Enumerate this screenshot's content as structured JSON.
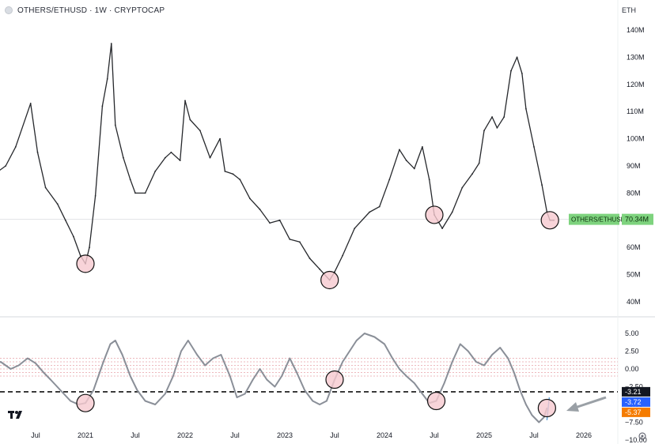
{
  "header": {
    "title": "OTHERS/ETHUSD · 1W · CRYPTOCAP",
    "currency": "ETH"
  },
  "price_tag": {
    "label": "OTHERS/ETHUSD",
    "value": "70.34M"
  },
  "osc_tags": [
    {
      "value": "-3.21",
      "color": "#131722"
    },
    {
      "value": "-3.72",
      "color": "#2962ff"
    },
    {
      "value": "-5.37",
      "color": "#f57c00"
    }
  ],
  "colors": {
    "line": "#26282c",
    "osc_line": "#8a8f98",
    "osc_signal": "#5b9bd5",
    "highlight_fill": "#f6c9cf",
    "price_tag": "#7ed37e"
  },
  "icons": {
    "logo": "tradingview-logo-icon",
    "settings": "gear-icon",
    "arrow": "arrow-icon"
  },
  "chart_data": {
    "type": "line",
    "title": "OTHERS/ETHUSD · 1W · CRYPTOCAP",
    "x_tick_labels": [
      "Jul",
      "2021",
      "Jul",
      "2022",
      "Jul",
      "2023",
      "Jul",
      "2024",
      "Jul",
      "2025",
      "Jul",
      "2026"
    ],
    "x_ticks": [
      2020.5,
      2021.0,
      2021.5,
      2022.0,
      2022.5,
      2023.0,
      2023.5,
      2024.0,
      2024.5,
      2025.0,
      2025.5,
      2026.0
    ],
    "price_axis": {
      "ticks": [
        40,
        50,
        60,
        70,
        80,
        90,
        100,
        110,
        120,
        130,
        140
      ],
      "tick_labels": [
        "40M",
        "50M",
        "60M",
        "70M",
        "80M",
        "90M",
        "100M",
        "110M",
        "120M",
        "130M",
        "140M"
      ],
      "ylim": [
        40,
        140
      ]
    },
    "price_series": {
      "name": "OTHERS/ETHUSD",
      "x": [
        2020.05,
        2020.2,
        2020.3,
        2020.45,
        2020.52,
        2020.6,
        2020.72,
        2020.8,
        2020.88,
        2020.95,
        2021.0,
        2021.04,
        2021.1,
        2021.17,
        2021.22,
        2021.26,
        2021.3,
        2021.38,
        2021.45,
        2021.5,
        2021.6,
        2021.7,
        2021.8,
        2021.86,
        2021.95,
        2022.0,
        2022.05,
        2022.15,
        2022.25,
        2022.35,
        2022.4,
        2022.48,
        2022.55,
        2022.65,
        2022.75,
        2022.85,
        2022.95,
        2023.05,
        2023.15,
        2023.25,
        2023.35,
        2023.45,
        2023.5,
        2023.58,
        2023.7,
        2023.85,
        2023.95,
        2024.05,
        2024.15,
        2024.22,
        2024.3,
        2024.38,
        2024.45,
        2024.5,
        2024.58,
        2024.68,
        2024.78,
        2024.88,
        2024.95,
        2025.0,
        2025.08,
        2025.13,
        2025.2,
        2025.27,
        2025.33,
        2025.38,
        2025.42,
        2025.5,
        2025.58,
        2025.63,
        2025.66,
        2025.7
      ],
      "values": [
        86,
        90,
        97,
        113,
        95,
        82,
        76,
        70,
        64,
        57,
        54,
        60,
        79,
        112,
        122,
        135,
        105,
        93,
        85,
        80,
        80,
        88,
        93,
        95,
        92,
        114,
        107,
        103,
        93,
        100,
        88,
        87,
        85,
        78,
        74,
        69,
        70,
        63,
        62,
        56,
        52,
        48,
        51,
        57,
        67,
        73,
        75,
        85,
        96,
        92,
        89,
        97,
        85,
        72,
        67,
        73,
        82,
        87,
        91,
        103,
        108,
        104,
        108,
        125,
        130,
        124,
        111,
        97,
        83,
        73,
        70,
        70
      ]
    },
    "oscillator": {
      "name": "-3.72",
      "axis_ticks": [
        5.0,
        2.5,
        0.0,
        -2.5,
        -5.0,
        -7.5,
        -10.0
      ],
      "axis_tick_labels": [
        "5.00",
        "2.50",
        "0.00",
        "−2.50",
        "−5.00",
        "−7.50",
        "−10.00"
      ],
      "ylim": [
        -10,
        6
      ],
      "x": [
        2020.05,
        2020.15,
        2020.25,
        2020.33,
        2020.42,
        2020.5,
        2020.58,
        2020.65,
        2020.75,
        2020.85,
        2020.93,
        2021.0,
        2021.08,
        2021.18,
        2021.25,
        2021.3,
        2021.37,
        2021.45,
        2021.52,
        2021.6,
        2021.7,
        2021.8,
        2021.88,
        2021.96,
        2022.03,
        2022.12,
        2022.2,
        2022.28,
        2022.36,
        2022.45,
        2022.52,
        2022.6,
        2022.68,
        2022.75,
        2022.82,
        2022.9,
        2022.97,
        2023.05,
        2023.12,
        2023.2,
        2023.28,
        2023.35,
        2023.42,
        2023.5,
        2023.58,
        2023.65,
        2023.72,
        2023.8,
        2023.9,
        2024.0,
        2024.08,
        2024.15,
        2024.22,
        2024.3,
        2024.38,
        2024.45,
        2024.52,
        2024.6,
        2024.68,
        2024.76,
        2024.84,
        2024.92,
        2025.0,
        2025.08,
        2025.16,
        2025.24,
        2025.3,
        2025.36,
        2025.42,
        2025.48,
        2025.55,
        2025.6,
        2025.63
      ],
      "values": [
        0.5,
        1.0,
        0.0,
        0.5,
        1.5,
        0.8,
        -0.5,
        -1.5,
        -3.0,
        -4.5,
        -5.0,
        -4.8,
        -3.0,
        1.0,
        3.5,
        4.0,
        2.0,
        -1.0,
        -3.0,
        -4.5,
        -5.0,
        -3.5,
        -1.0,
        2.5,
        4.0,
        2.0,
        0.5,
        1.5,
        2.0,
        -1.0,
        -4.0,
        -3.5,
        -1.5,
        0.0,
        -1.5,
        -2.5,
        -1.0,
        1.5,
        -0.5,
        -3.0,
        -4.5,
        -5.0,
        -4.5,
        -1.5,
        1.0,
        2.5,
        4.0,
        5.0,
        4.5,
        3.5,
        1.5,
        0.0,
        -1.0,
        -2.0,
        -3.5,
        -4.8,
        -4.5,
        -2.0,
        1.0,
        3.5,
        2.5,
        1.0,
        0.5,
        2.0,
        3.0,
        1.5,
        -0.5,
        -3.0,
        -5.0,
        -6.5,
        -7.5,
        -6.8,
        -5.5
      ]
    },
    "reference_level": -3.21,
    "current_price": 70.34,
    "highlighted_x": [
      2021.0,
      2023.47,
      2024.5,
      2025.66
    ]
  }
}
